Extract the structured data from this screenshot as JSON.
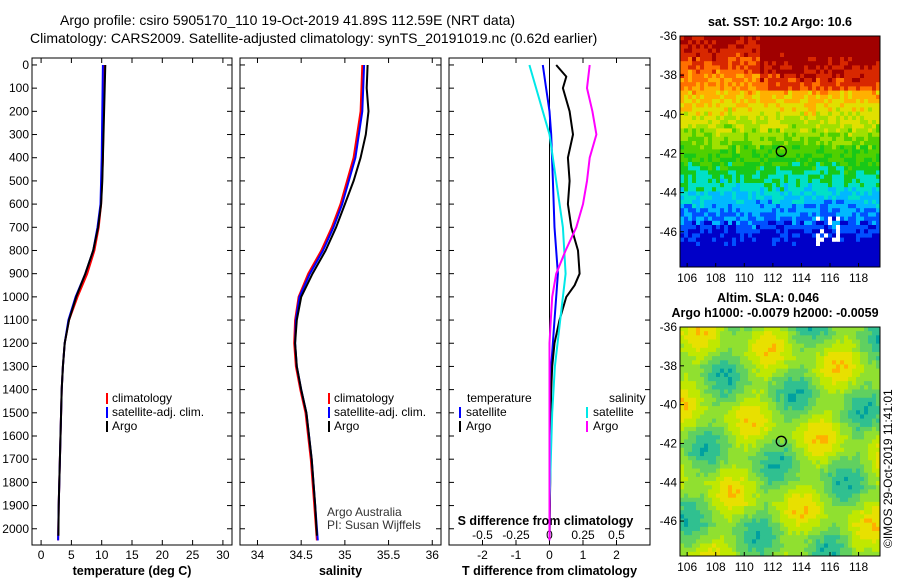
{
  "titles": {
    "line1": "Argo profile: csiro 5905170_110 19-Oct-2019 41.89S 112.59E (NRT data)",
    "line2": "Climatology: CARS2009. Satellite-adjusted climatology: synTS_20191019.nc (0.62d earlier)"
  },
  "colors": {
    "climatology": "#ff0000",
    "satellite_adj": "#0000ff",
    "argo": "#000000",
    "temp_satellite": "#0000ff",
    "temp_argo": "#000000",
    "sal_satellite": "#00e8e8",
    "sal_argo": "#ff00ff"
  },
  "depth_axis": {
    "ticks": [
      0,
      100,
      200,
      300,
      400,
      500,
      600,
      700,
      800,
      900,
      1000,
      1100,
      1200,
      1300,
      1400,
      1500,
      1600,
      1700,
      1800,
      1900,
      2000
    ],
    "tick_labels": [
      "0",
      "100",
      "200",
      "300",
      "400",
      "500",
      "600",
      "700",
      "800",
      "900",
      "1000",
      "1100",
      "1200",
      "1300",
      "1400",
      "1500",
      "1600",
      "1700",
      "1800",
      "1900",
      "2000"
    ],
    "range": [
      -30,
      2070
    ]
  },
  "chart_data": [
    {
      "type": "line",
      "id": "temperature",
      "xlabel": "temperature (deg C)",
      "xlim": [
        -1.5,
        31.5
      ],
      "xticks": [
        0,
        5,
        10,
        15,
        20,
        25,
        30
      ],
      "xtick_labels": [
        "0",
        "5",
        "10",
        "15",
        "20",
        "25",
        "30"
      ],
      "legend": [
        "climatology",
        "satellite-adj. clim.",
        "Argo"
      ],
      "series": [
        {
          "key": "climatology",
          "depth": [
            0,
            200,
            400,
            600,
            700,
            800,
            900,
            1000,
            1100,
            1200,
            1300,
            1400,
            1500,
            1700,
            1900,
            2050
          ],
          "values": [
            10.4,
            10.3,
            10.2,
            9.9,
            9.5,
            8.8,
            7.6,
            6.0,
            4.6,
            3.9,
            3.6,
            3.4,
            3.3,
            3.1,
            2.9,
            2.8
          ]
        },
        {
          "key": "satellite_adj",
          "depth": [
            0,
            200,
            400,
            600,
            700,
            800,
            900,
            1000,
            1100,
            1200,
            1300,
            1400,
            1500,
            1700,
            1900,
            2050
          ],
          "values": [
            10.2,
            10.1,
            10.0,
            9.8,
            9.3,
            8.6,
            7.3,
            5.7,
            4.5,
            3.9,
            3.6,
            3.4,
            3.3,
            3.1,
            2.9,
            2.8
          ]
        },
        {
          "key": "argo",
          "depth": [
            0,
            100,
            200,
            300,
            400,
            500,
            600,
            700,
            800,
            900,
            1000,
            1100,
            1200,
            1300,
            1400,
            1500,
            1700,
            1900,
            2030
          ],
          "values": [
            10.6,
            10.5,
            10.4,
            10.3,
            10.2,
            10.1,
            9.9,
            9.4,
            8.6,
            7.3,
            5.8,
            4.6,
            3.9,
            3.6,
            3.4,
            3.3,
            3.1,
            2.9,
            2.85
          ]
        }
      ]
    },
    {
      "type": "line",
      "id": "salinity",
      "xlabel": "salinity",
      "xlim": [
        33.8,
        36.1
      ],
      "xticks": [
        34,
        34.5,
        35,
        35.5,
        36
      ],
      "xtick_labels": [
        "34",
        "34.5",
        "35",
        "35.5",
        "36"
      ],
      "legend": [
        "climatology",
        "satellite-adj. clim.",
        "Argo"
      ],
      "annotation": [
        "Argo Australia",
        "PI: Susan Wijffels"
      ],
      "series": [
        {
          "key": "climatology",
          "depth": [
            0,
            200,
            400,
            600,
            700,
            800,
            900,
            1000,
            1100,
            1200,
            1300,
            1400,
            1500,
            1700,
            1900,
            2050
          ],
          "values": [
            35.2,
            35.18,
            35.1,
            34.95,
            34.85,
            34.73,
            34.58,
            34.47,
            34.43,
            34.42,
            34.44,
            34.49,
            34.55,
            34.61,
            34.65,
            34.68
          ]
        },
        {
          "key": "satellite_adj",
          "depth": [
            0,
            200,
            400,
            600,
            700,
            800,
            900,
            1000,
            1100,
            1200,
            1300,
            1400,
            1500,
            1700,
            1900,
            2050
          ],
          "values": [
            35.22,
            35.2,
            35.12,
            34.97,
            34.87,
            34.75,
            34.6,
            34.48,
            34.44,
            34.43,
            34.45,
            34.5,
            34.56,
            34.62,
            34.66,
            34.69
          ]
        },
        {
          "key": "argo",
          "depth": [
            0,
            100,
            200,
            300,
            400,
            500,
            600,
            700,
            800,
            900,
            1000,
            1100,
            1200,
            1300,
            1400,
            1500,
            1700,
            1900,
            2030
          ],
          "values": [
            35.26,
            35.25,
            35.27,
            35.24,
            35.18,
            35.1,
            35.0,
            34.9,
            34.78,
            34.63,
            34.5,
            34.45,
            34.43,
            34.45,
            34.5,
            34.56,
            34.62,
            34.66,
            34.68
          ]
        }
      ]
    },
    {
      "type": "line",
      "id": "difference",
      "xlabel": "T difference from climatology",
      "xlabel_top": "S difference from climatology",
      "xlim": [
        -3,
        3
      ],
      "xticks": [
        -2,
        -1,
        0,
        1,
        2
      ],
      "xtick_labels": [
        "-2",
        "-1",
        "0",
        "1",
        "2"
      ],
      "sticks": [
        -0.5,
        -0.25,
        0,
        0.25,
        0.5
      ],
      "stick_labels": [
        "-0.5",
        "-0.25",
        "0",
        "0.25",
        "0.5"
      ],
      "legend_titles": [
        "temperature",
        "salinity"
      ],
      "legend_left": [
        "satellite",
        "Argo"
      ],
      "legend_right": [
        "satellite",
        "Argo"
      ],
      "series": [
        {
          "key": "temp_satellite",
          "depth": [
            0,
            100,
            200,
            300,
            500,
            700,
            900,
            1100,
            1300,
            1500,
            1700,
            1900,
            2050
          ],
          "values": [
            -0.2,
            -0.1,
            0.0,
            0.05,
            0.1,
            0.15,
            0.25,
            0.15,
            0.05,
            0.03,
            0.02,
            0.01,
            0.0
          ]
        },
        {
          "key": "temp_argo",
          "depth": [
            0,
            50,
            100,
            200,
            300,
            400,
            500,
            600,
            700,
            800,
            900,
            950,
            1000,
            1100,
            1200,
            1300,
            1400,
            1500,
            1600,
            1700,
            1800,
            1900,
            2050
          ],
          "values": [
            0.2,
            0.5,
            0.4,
            0.6,
            0.7,
            0.55,
            0.6,
            0.55,
            0.65,
            0.85,
            0.9,
            0.75,
            0.5,
            0.3,
            0.15,
            0.08,
            0.05,
            0.04,
            0.03,
            0.02,
            0.02,
            0.01,
            0.0
          ]
        },
        {
          "key": "sal_satellite",
          "depth": [
            0,
            100,
            200,
            300,
            500,
            700,
            900,
            1100,
            1300,
            1500,
            1700,
            1900,
            2050
          ],
          "values": [
            -0.15,
            -0.1,
            -0.05,
            0.0,
            0.05,
            0.1,
            0.12,
            0.08,
            0.04,
            0.02,
            0.01,
            0.0,
            0.0
          ]
        },
        {
          "key": "sal_argo",
          "depth": [
            0,
            100,
            200,
            300,
            400,
            500,
            600,
            700,
            800,
            900,
            1000,
            1100,
            1200,
            1300,
            1400,
            1500,
            1700,
            1900,
            2050
          ],
          "values": [
            0.3,
            0.28,
            0.32,
            0.35,
            0.3,
            0.28,
            0.25,
            0.2,
            0.12,
            0.05,
            0.02,
            0.01,
            0.0,
            0.0,
            0.0,
            0.0,
            0.0,
            0.0,
            0.0
          ]
        }
      ]
    },
    {
      "type": "heatmap",
      "id": "sst-map",
      "title": "sat. SST: 10.2 Argo: 10.6",
      "ylim": [
        -47.8,
        -36
      ],
      "xlim": [
        105.5,
        119.5
      ],
      "yticks": [
        -36,
        -38,
        -40,
        -42,
        -44,
        -46
      ],
      "ytick_labels": [
        "-36",
        "-38",
        "-40",
        "-42",
        "-44",
        "-46"
      ],
      "xticks": [
        106,
        108,
        110,
        112,
        114,
        116,
        118
      ],
      "xtick_labels": [
        "106",
        "108",
        "110",
        "112",
        "114",
        "116",
        "118"
      ],
      "marker": {
        "lon": 112.59,
        "lat": -41.89
      }
    },
    {
      "type": "heatmap",
      "id": "sla-map",
      "title": "Altim. SLA: 0.046",
      "subtitle": "Argo h1000: -0.0079 h2000: -0.0059",
      "ylim": [
        -47.8,
        -36
      ],
      "xlim": [
        105.5,
        119.5
      ],
      "yticks": [
        -36,
        -38,
        -40,
        -42,
        -44,
        -46
      ],
      "ytick_labels": [
        "-36",
        "-38",
        "-40",
        "-42",
        "-44",
        "-46"
      ],
      "xticks": [
        106,
        108,
        110,
        112,
        114,
        116,
        118
      ],
      "xtick_labels": [
        "106",
        "108",
        "110",
        "112",
        "114",
        "116",
        "118"
      ],
      "marker": {
        "lon": 112.59,
        "lat": -41.89
      }
    }
  ],
  "watermark": "©IMOS 29-Oct-2019 11:41:01"
}
